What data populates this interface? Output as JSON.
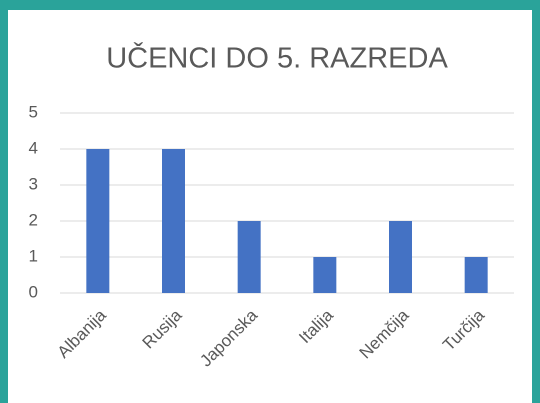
{
  "chart_data": {
    "type": "bar",
    "title": "UČENCI DO 5. RAZREDA",
    "categories": [
      "Albanija",
      "Rusija",
      "Japonska",
      "Italija",
      "Nemčija",
      "Turčija"
    ],
    "values": [
      4,
      4,
      2,
      1,
      2,
      1
    ],
    "color": "#4472c4",
    "ylim": [
      0,
      5
    ],
    "yticks": [
      0,
      1,
      2,
      3,
      4,
      5
    ],
    "grid": true
  }
}
